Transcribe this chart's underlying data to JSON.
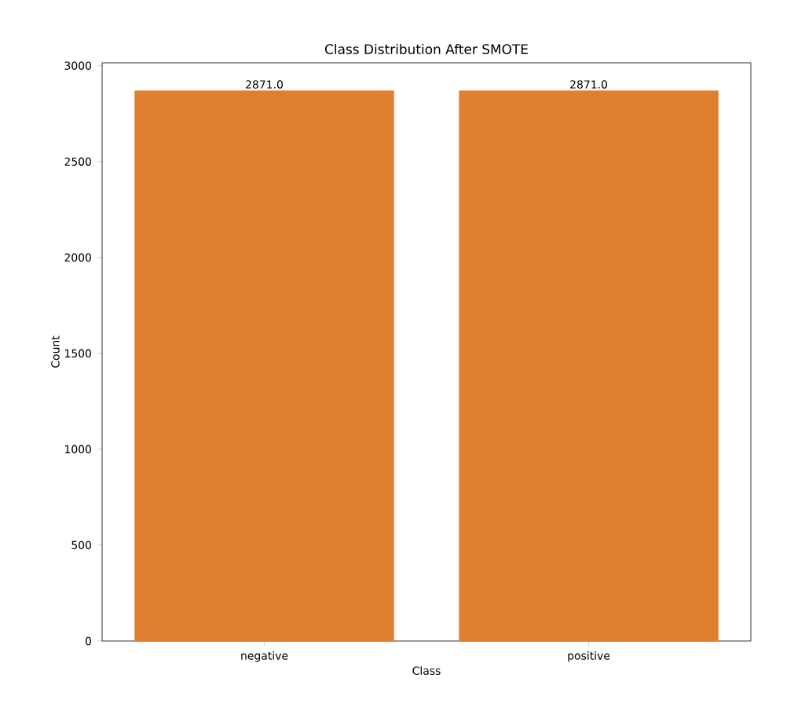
{
  "chart_data": {
    "type": "bar",
    "title": "Class Distribution After SMOTE",
    "xlabel": "Class",
    "ylabel": "Count",
    "categories": [
      "negative",
      "positive"
    ],
    "values": [
      2871,
      2871
    ],
    "value_labels": [
      "2871.0",
      "2871.0"
    ],
    "color": "#e0802e",
    "ylim": [
      0,
      3015
    ],
    "yticks": [
      0,
      500,
      1000,
      1500,
      2000,
      2500,
      3000
    ]
  }
}
